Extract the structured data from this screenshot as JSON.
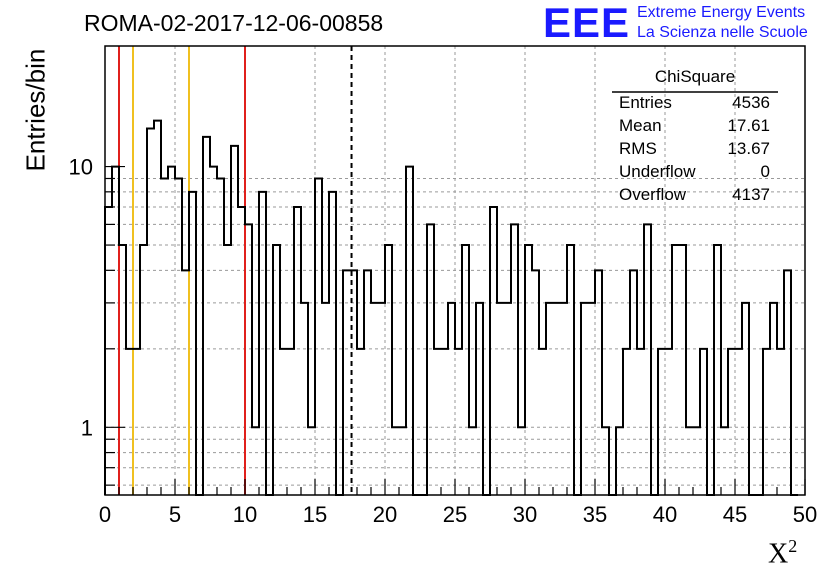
{
  "title": "ROMA-02-2017-12-06-00858",
  "logo": {
    "mark": "EEE",
    "line1": "Extreme Energy Events",
    "line2": "La Scienza nelle Scuole",
    "color": "#1a1aff"
  },
  "chart_data": {
    "type": "histogram",
    "xlabel": "X",
    "xlabel_sup": "2",
    "ylabel": "Entries/bin",
    "xlim": [
      0,
      50
    ],
    "ylim": [
      0.55,
      29
    ],
    "yscale": "log",
    "grid": true,
    "bin_width": 0.5,
    "x_ticks": [
      "0",
      "5",
      "10",
      "15",
      "20",
      "25",
      "30",
      "35",
      "40",
      "45",
      "50"
    ],
    "y_ticks": [
      {
        "value": 1,
        "label": "1"
      },
      {
        "value": 10,
        "label": "10"
      }
    ],
    "bin_counts": [
      7,
      10,
      5,
      2,
      2,
      5,
      14,
      15,
      9,
      10,
      9,
      4,
      8,
      0,
      13,
      10,
      9,
      5,
      12,
      7,
      6,
      1,
      8,
      0,
      5,
      2,
      2,
      7,
      3,
      1,
      9,
      3,
      8,
      0,
      4,
      4,
      2,
      4,
      3,
      3,
      5,
      1,
      1,
      10,
      0,
      0,
      6,
      2,
      2,
      3,
      2,
      5,
      1,
      3,
      0,
      7,
      3,
      3,
      6,
      1,
      5,
      4,
      2,
      3,
      3,
      3,
      5,
      0,
      3,
      3,
      4,
      1,
      0,
      1,
      2,
      4,
      2,
      6,
      0,
      2,
      2,
      5,
      5,
      1,
      1,
      2,
      0,
      5,
      1,
      2,
      2,
      3,
      0,
      0,
      2,
      3,
      2,
      4,
      0
    ],
    "reference_lines": [
      {
        "x": 1,
        "color": "#e0201c",
        "style": "solid"
      },
      {
        "x": 2,
        "color": "#f0c020",
        "style": "solid"
      },
      {
        "x": 6,
        "color": "#f0c020",
        "style": "solid"
      },
      {
        "x": 10,
        "color": "#e0201c",
        "style": "solid"
      },
      {
        "x": 17.61,
        "color": "#000000",
        "style": "dashed"
      }
    ],
    "stats": {
      "title": "ChiSquare",
      "rows": [
        {
          "name": "Entries",
          "value": "4536"
        },
        {
          "name": "Mean",
          "value": "17.61"
        },
        {
          "name": "RMS",
          "value": "13.67"
        },
        {
          "name": "Underflow",
          "value": "0"
        },
        {
          "name": "Overflow",
          "value": "4137"
        }
      ]
    }
  }
}
